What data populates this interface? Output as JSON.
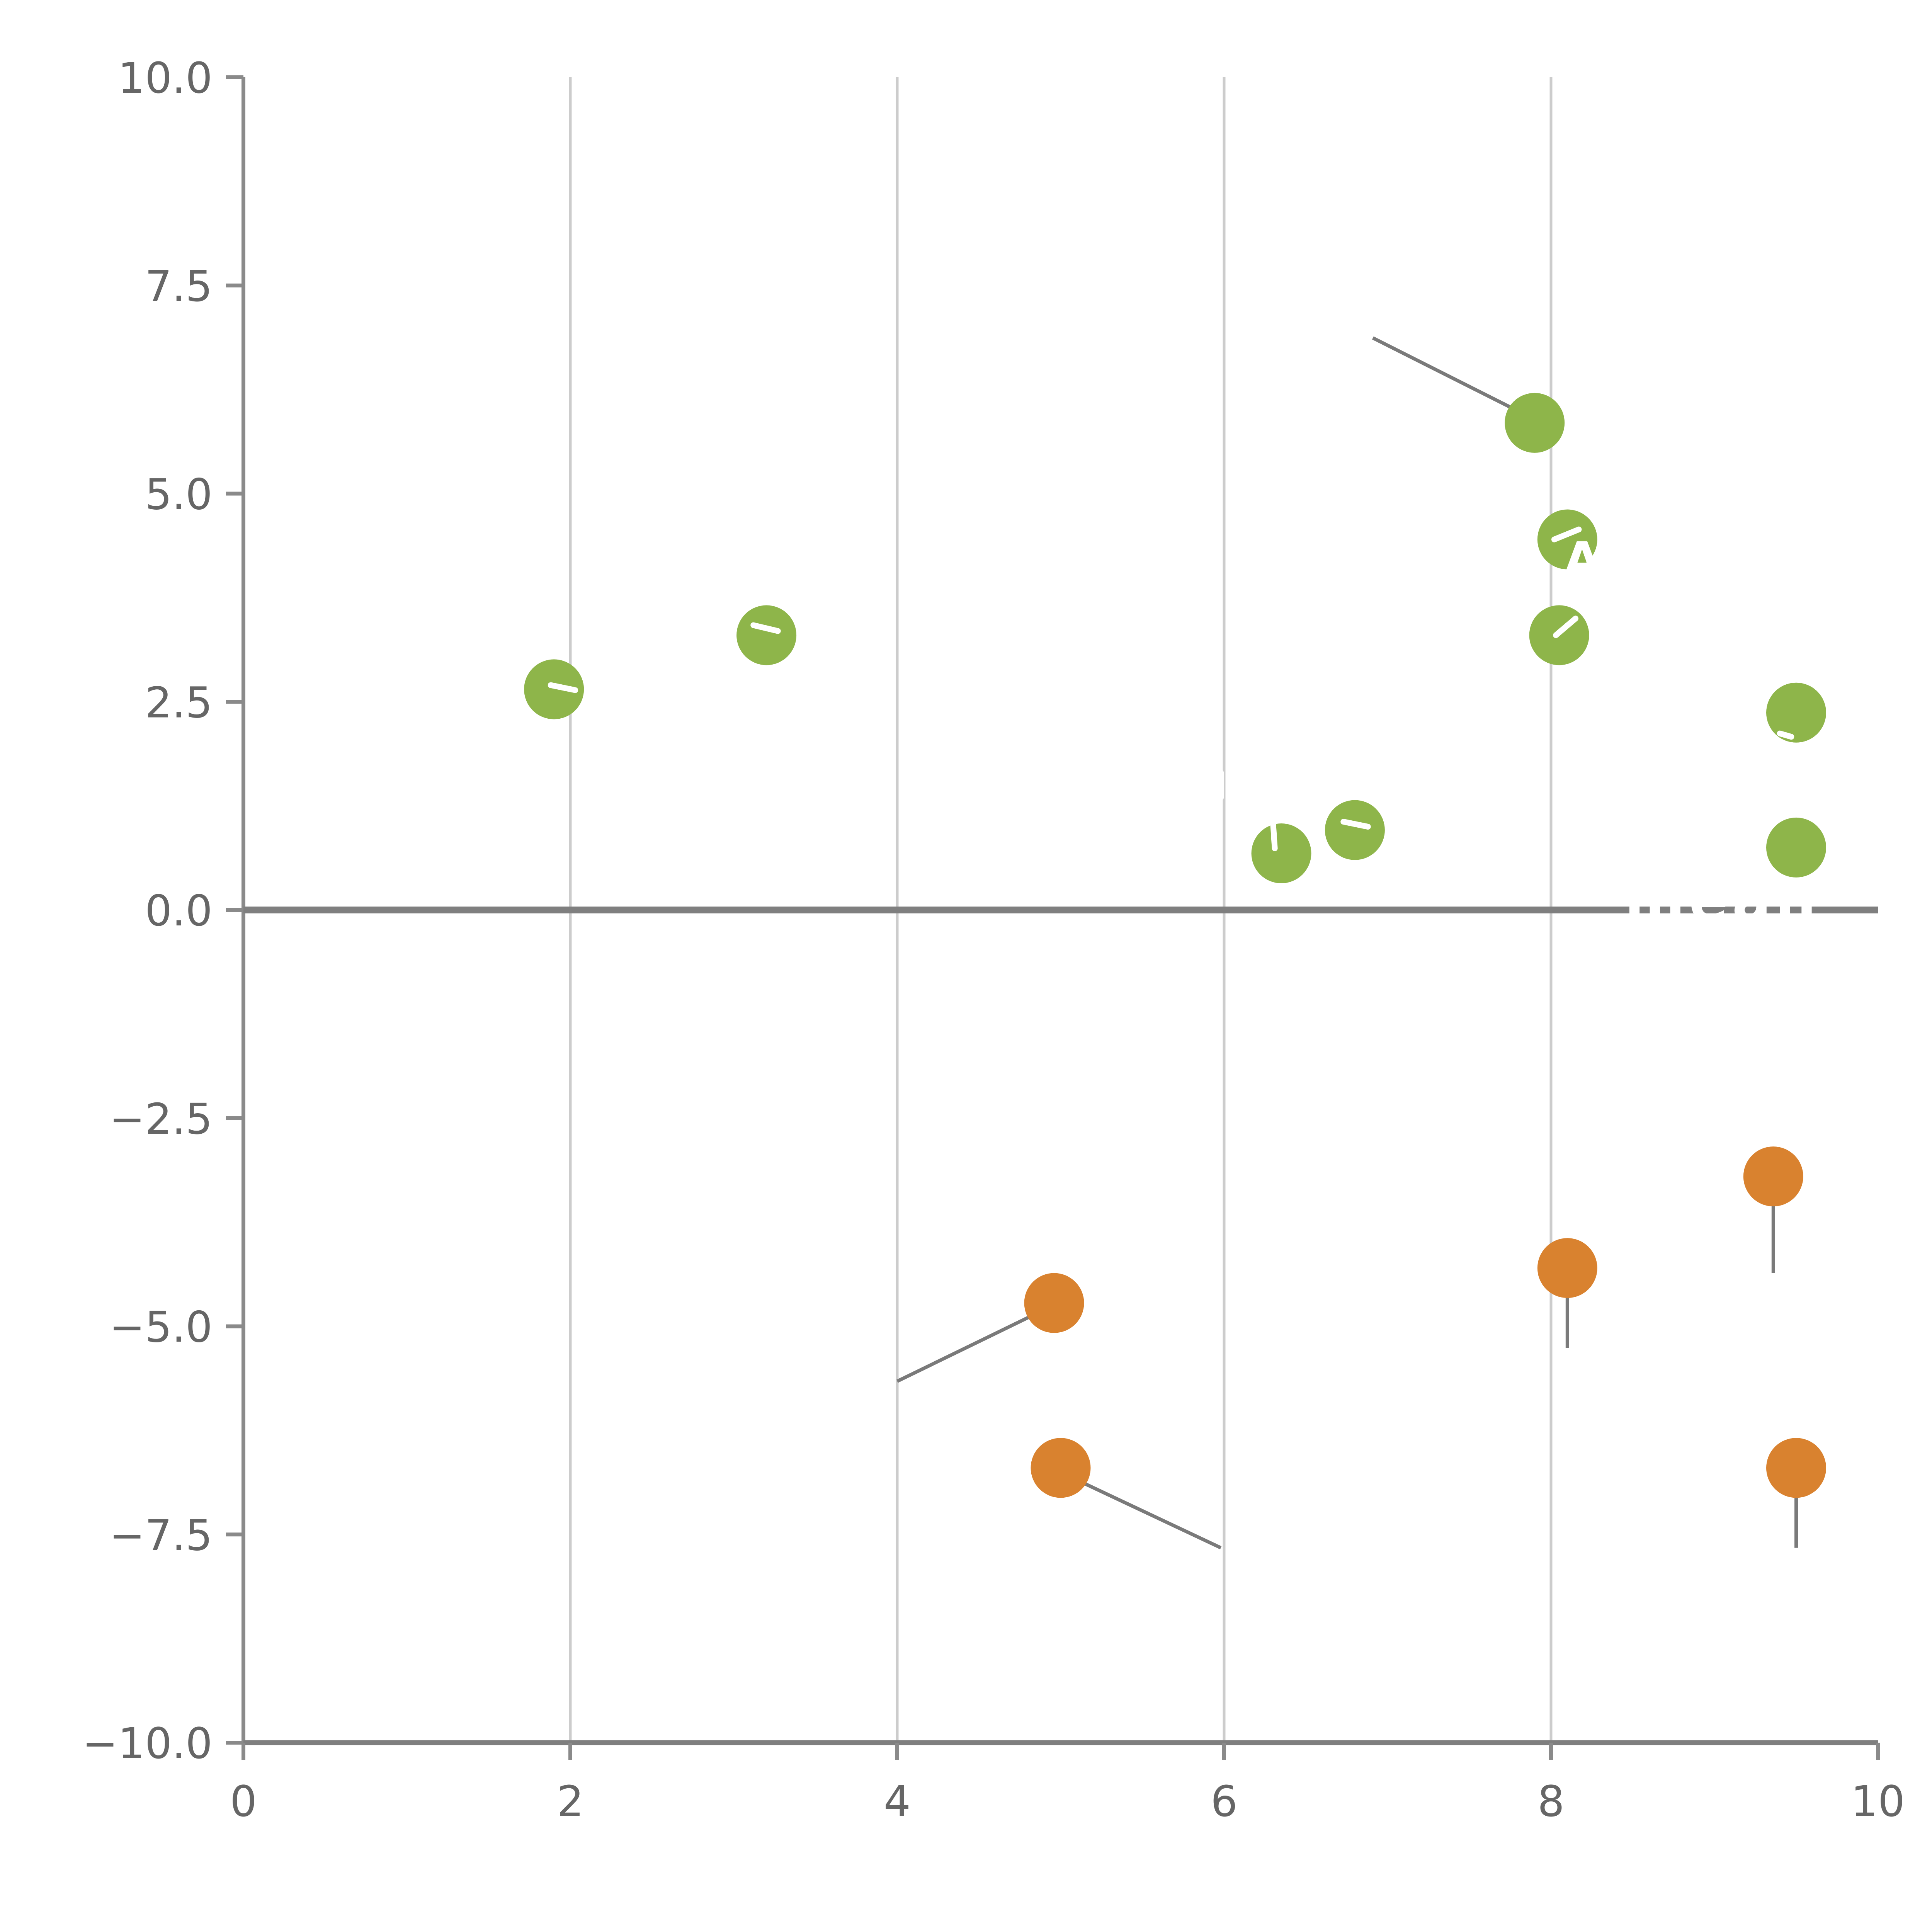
{
  "chart_data": {
    "type": "scatter",
    "title": "",
    "xlabel": "",
    "ylabel": "",
    "xlim": [
      0,
      10
    ],
    "ylim": [
      -10,
      10
    ],
    "x_ticks": [
      {
        "value": 0,
        "label": "0"
      },
      {
        "value": 2,
        "label": "2"
      },
      {
        "value": 4,
        "label": "4"
      },
      {
        "value": 6,
        "label": "6"
      },
      {
        "value": 8,
        "label": "8"
      },
      {
        "value": 10,
        "label": "10"
      }
    ],
    "y_ticks": [
      {
        "value": 10,
        "label": "10.0"
      },
      {
        "value": 7.5,
        "label": "7.5"
      },
      {
        "value": 5,
        "label": "5.0"
      },
      {
        "value": 2.5,
        "label": "2.5"
      },
      {
        "value": 0,
        "label": "0.0"
      },
      {
        "value": -2.5,
        "label": "−2.5"
      },
      {
        "value": -5,
        "label": "−5.0"
      },
      {
        "value": -7.5,
        "label": "−7.5"
      },
      {
        "value": -10,
        "label": "−10.0"
      }
    ],
    "grid_x": [
      2,
      4,
      6,
      8
    ],
    "zero_line_y": 0,
    "legend": "none",
    "series": [
      {
        "name": "positive-green",
        "color": "#8eb54a",
        "points": [
          [
            1.9,
            2.65
          ],
          [
            3.2,
            3.3
          ],
          [
            6.35,
            0.68
          ],
          [
            6.8,
            0.96
          ],
          [
            7.9,
            5.85
          ],
          [
            8.1,
            4.45
          ],
          [
            8.05,
            3.3
          ],
          [
            9.5,
            2.37
          ],
          [
            9.5,
            0.75
          ]
        ]
      },
      {
        "name": "negative-orange",
        "color": "#d9822f",
        "points": [
          [
            4.96,
            -4.72
          ],
          [
            5.0,
            -6.7
          ],
          [
            8.1,
            -4.3
          ],
          [
            9.36,
            -3.2
          ],
          [
            9.5,
            -6.7
          ]
        ]
      }
    ],
    "leader_lines": [
      [
        6.91,
        6.87,
        7.81,
        5.98
      ],
      [
        4.0,
        -5.66,
        4.9,
        -4.8
      ],
      [
        5.04,
        -6.79,
        5.98,
        -7.66
      ],
      [
        8.1,
        -4.45,
        8.1,
        -5.26
      ],
      [
        9.36,
        -3.34,
        9.36,
        -4.36
      ],
      [
        9.5,
        -6.82,
        9.5,
        -7.66
      ]
    ],
    "white_marks": [
      [
        1.88,
        2.7,
        2.03,
        2.64
      ],
      [
        3.12,
        3.42,
        3.27,
        3.35
      ],
      [
        6.3,
        1.03,
        6.31,
        0.74
      ],
      [
        6.73,
        1.06,
        6.88,
        1.0
      ],
      [
        8.02,
        4.45,
        8.17,
        4.57
      ],
      [
        8.03,
        3.3,
        8.15,
        3.5
      ],
      [
        5.98,
        1.65,
        5.98,
        1.35
      ],
      [
        9.4,
        2.12,
        9.47,
        2.08
      ]
    ],
    "white_labels": [
      {
        "text": "A",
        "x": 8.08,
        "y": 4.02,
        "size": 24,
        "weight": "bold",
        "anchor": "start"
      },
      {
        "text": "mean",
        "x": 8.45,
        "y": -0.12,
        "size": 30,
        "weight": "bold",
        "anchor": "start",
        "letter_spacing": 2
      }
    ],
    "layout": {
      "marker_radius": 15.5,
      "grid": "vertical-only",
      "legend_position": "none"
    },
    "colors": {
      "grid": "#cccccc",
      "zero_line": "#7f7f7f",
      "spine": "#8a8a8a",
      "leader": "#7a7a7a",
      "tick_label": "#666666",
      "background": "#ffffff",
      "white_overlay": "#ffffff"
    }
  }
}
